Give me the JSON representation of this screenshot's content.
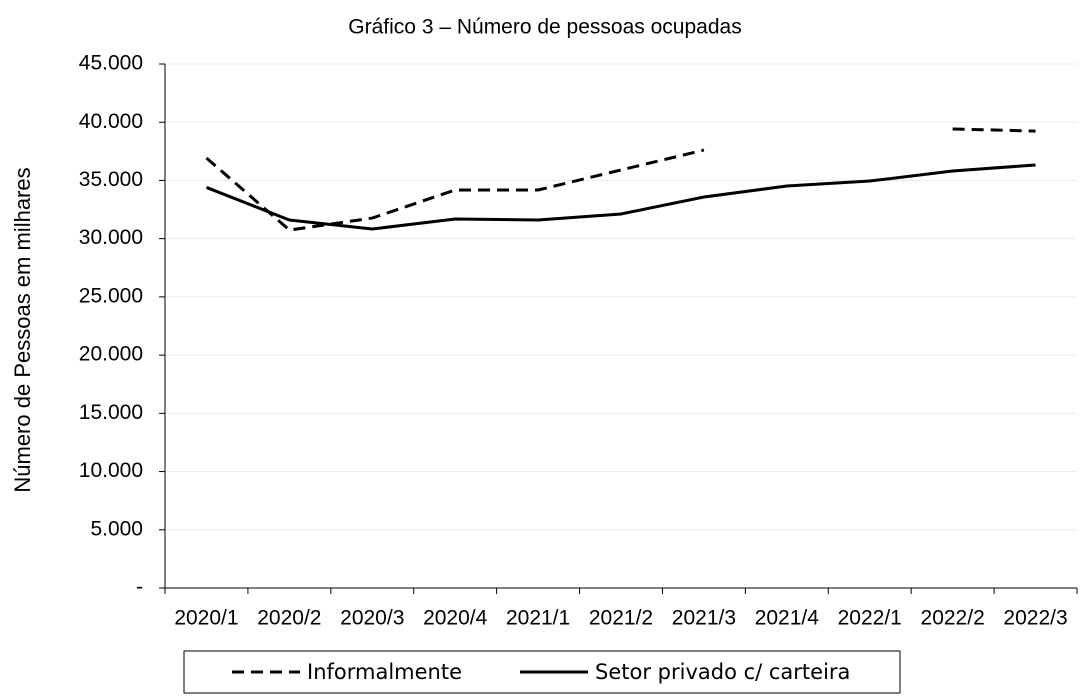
{
  "chart_data": {
    "type": "line",
    "title": "Gráfico 3 – Número de pessoas ocupadas",
    "y_label": "Número de Pessoas em milhares",
    "categories": [
      "2020/1",
      "2020/2",
      "2020/3",
      "2020/4",
      "2021/1",
      "2021/2",
      "2021/3",
      "2021/4",
      "2022/1",
      "2022/2",
      "2022/3"
    ],
    "series": [
      {
        "name": "Informalmente",
        "color": "#000000",
        "dash": "dashed",
        "values": [
          36930,
          30740,
          31770,
          34180,
          34180,
          35900,
          37610,
          null,
          null,
          39420,
          39240
        ]
      },
      {
        "name": "Setor privado c/ carteira",
        "color": "#000000",
        "dash": "solid",
        "values": [
          34400,
          31600,
          30830,
          31690,
          31600,
          32120,
          33580,
          34520,
          34950,
          35810,
          36330
        ]
      }
    ],
    "ylim": [
      0,
      45000
    ],
    "yticks": [
      {
        "value": 0,
        "label": "-"
      },
      {
        "value": 5000,
        "label": "5.000"
      },
      {
        "value": 10000,
        "label": "10.000"
      },
      {
        "value": 15000,
        "label": "15.000"
      },
      {
        "value": 20000,
        "label": "20.000"
      },
      {
        "value": 25000,
        "label": "25.000"
      },
      {
        "value": 30000,
        "label": "30.000"
      },
      {
        "value": 35000,
        "label": "35.000"
      },
      {
        "value": 40000,
        "label": "40.000"
      },
      {
        "value": 45000,
        "label": "45.000"
      }
    ],
    "grid": true,
    "legend": "bottom"
  }
}
